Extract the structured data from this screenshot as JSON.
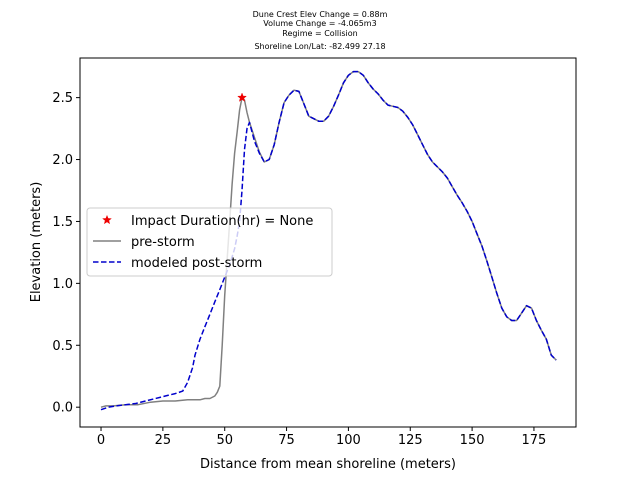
{
  "chart_data": {
    "type": "line",
    "title_lines": [
      "Dune Crest Elev Change = 0.88m",
      "Volume Change = -4.065m3",
      "Regime = Collision",
      "Shoreline Lon/Lat: -82.499 27.18"
    ],
    "xlabel": "Distance from mean shoreline (meters)",
    "ylabel": "Elevation (meters)",
    "xlim": [
      -8.5,
      192
    ],
    "ylim": [
      -0.16,
      2.82
    ],
    "xticks": [
      0,
      25,
      50,
      75,
      100,
      125,
      150,
      175
    ],
    "yticks": [
      0.0,
      0.5,
      1.0,
      1.5,
      2.0,
      2.5
    ],
    "ytick_labels": [
      "0.0",
      "0.5",
      "1.0",
      "1.5",
      "2.0",
      "2.5"
    ],
    "grid": false,
    "legend_position": "center-left",
    "series": [
      {
        "name": "pre-storm",
        "style": "solid",
        "color": "#808080",
        "x": [
          0,
          2,
          5,
          10,
          15,
          20,
          25,
          30,
          35,
          38,
          40,
          42,
          44,
          46,
          47,
          48,
          49,
          50,
          51,
          52,
          53,
          54,
          55,
          56,
          57,
          58,
          59,
          60,
          62,
          64,
          66,
          68,
          70,
          72,
          74,
          76,
          78,
          80,
          82,
          84,
          86,
          88,
          90,
          92,
          94,
          96,
          98,
          100,
          102,
          104,
          106,
          108,
          110,
          112,
          114,
          116,
          118,
          120,
          122,
          124,
          126,
          128,
          130,
          132,
          134,
          136,
          138,
          140,
          142,
          144,
          146,
          148,
          150,
          152,
          154,
          156,
          158,
          160,
          162,
          164,
          166,
          168,
          170,
          172,
          174,
          176,
          178,
          180,
          182,
          184
        ],
        "y": [
          0.0,
          0.01,
          0.01,
          0.02,
          0.02,
          0.04,
          0.05,
          0.05,
          0.06,
          0.06,
          0.06,
          0.07,
          0.07,
          0.09,
          0.12,
          0.17,
          0.5,
          0.9,
          1.2,
          1.5,
          1.8,
          2.05,
          2.22,
          2.4,
          2.5,
          2.48,
          2.38,
          2.3,
          2.18,
          2.06,
          1.98,
          2.0,
          2.12,
          2.3,
          2.46,
          2.52,
          2.56,
          2.55,
          2.45,
          2.35,
          2.33,
          2.31,
          2.31,
          2.35,
          2.43,
          2.52,
          2.62,
          2.68,
          2.71,
          2.71,
          2.68,
          2.62,
          2.57,
          2.53,
          2.48,
          2.44,
          2.43,
          2.42,
          2.39,
          2.34,
          2.28,
          2.2,
          2.12,
          2.04,
          1.98,
          1.94,
          1.9,
          1.85,
          1.78,
          1.71,
          1.65,
          1.58,
          1.5,
          1.4,
          1.3,
          1.18,
          1.05,
          0.92,
          0.8,
          0.73,
          0.7,
          0.7,
          0.76,
          0.82,
          0.8,
          0.7,
          0.62,
          0.55,
          0.42,
          0.38
        ]
      },
      {
        "name": "modeled post-storm",
        "style": "dashed",
        "color": "#0000cc",
        "x": [
          0,
          3,
          6,
          10,
          14,
          18,
          22,
          26,
          30,
          33,
          35,
          37,
          38,
          40,
          42,
          44,
          46,
          48,
          50,
          52,
          54,
          55,
          56,
          57,
          58,
          59,
          60,
          62,
          64,
          66,
          68,
          70,
          72,
          74,
          76,
          78,
          80,
          82,
          84,
          86,
          88,
          90,
          92,
          94,
          96,
          98,
          100,
          102,
          104,
          106,
          108,
          110,
          112,
          114,
          116,
          118,
          120,
          122,
          124,
          126,
          128,
          130,
          132,
          134,
          136,
          138,
          140,
          142,
          144,
          146,
          148,
          150,
          152,
          154,
          156,
          158,
          160,
          162,
          164,
          166,
          168,
          170,
          172,
          174,
          176,
          178,
          180,
          182,
          184
        ],
        "y": [
          -0.02,
          0.0,
          0.01,
          0.02,
          0.03,
          0.05,
          0.07,
          0.09,
          0.11,
          0.13,
          0.2,
          0.32,
          0.42,
          0.55,
          0.65,
          0.75,
          0.85,
          0.95,
          1.05,
          1.15,
          1.28,
          1.38,
          1.5,
          1.75,
          2.08,
          2.25,
          2.3,
          2.15,
          2.05,
          1.98,
          2.0,
          2.12,
          2.3,
          2.46,
          2.52,
          2.56,
          2.55,
          2.45,
          2.35,
          2.33,
          2.31,
          2.31,
          2.35,
          2.43,
          2.52,
          2.62,
          2.68,
          2.71,
          2.71,
          2.68,
          2.62,
          2.57,
          2.53,
          2.48,
          2.44,
          2.43,
          2.42,
          2.39,
          2.34,
          2.28,
          2.2,
          2.12,
          2.04,
          1.98,
          1.94,
          1.9,
          1.85,
          1.78,
          1.71,
          1.65,
          1.58,
          1.5,
          1.4,
          1.3,
          1.18,
          1.05,
          0.92,
          0.8,
          0.73,
          0.7,
          0.7,
          0.76,
          0.82,
          0.8,
          0.7,
          0.62,
          0.55,
          0.42,
          0.38
        ]
      }
    ],
    "markers": [
      {
        "name": "Impact Duration(hr) = None",
        "marker": "star",
        "color": "#ee0000",
        "x": [
          57
        ],
        "y": [
          2.5
        ]
      }
    ]
  }
}
